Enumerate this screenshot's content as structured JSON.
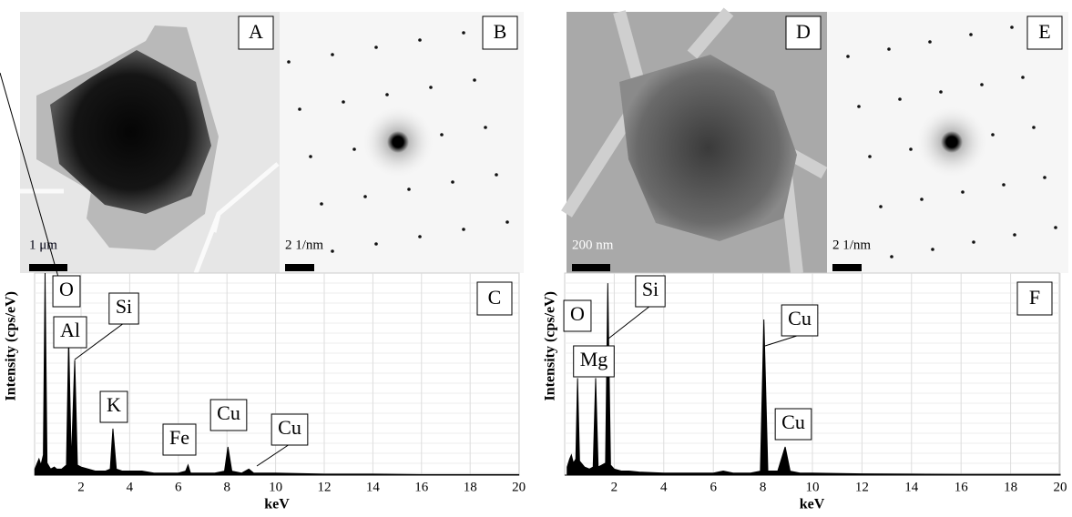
{
  "panels": [
    {
      "label": "A",
      "scale": "1 μm"
    },
    {
      "label": "B",
      "scale": "2 1/nm"
    },
    {
      "label": "D",
      "scale": "200 nm"
    },
    {
      "label": "E",
      "scale": "2 1/nm"
    }
  ],
  "chart_data": [
    {
      "type": "area",
      "title": "C",
      "x_label": "keV",
      "y_label": "Intensity (cps/eV)",
      "color": "#000000",
      "x": [
        0.1,
        0.2,
        0.27,
        0.35,
        0.45,
        0.52,
        0.6,
        0.75,
        0.9,
        1.0,
        1.2,
        1.4,
        1.49,
        1.6,
        1.74,
        1.85,
        2.0,
        2.3,
        2.6,
        3.0,
        3.2,
        3.31,
        3.45,
        3.7,
        4.0,
        4.5,
        5.0,
        5.5,
        6.0,
        6.3,
        6.4,
        6.5,
        6.8,
        7.0,
        7.5,
        7.9,
        8.04,
        8.2,
        8.6,
        8.9,
        9.1,
        9.5,
        10,
        12,
        14,
        16,
        18,
        20
      ],
      "values": [
        3,
        6,
        8,
        5,
        10,
        100,
        6,
        3,
        4,
        3,
        3,
        5,
        68,
        6,
        57,
        5,
        4,
        3,
        2,
        2,
        3,
        23,
        3,
        2,
        2,
        2,
        1,
        1,
        1,
        2,
        5,
        1,
        1,
        1,
        1,
        2,
        14,
        2,
        1,
        3,
        1,
        1,
        1,
        0.5,
        0.5,
        0.3,
        0.3,
        0.3
      ],
      "xlim": [
        0,
        20
      ],
      "ylim": [
        0,
        100
      ],
      "xticks": [
        2,
        4,
        6,
        8,
        10,
        12,
        14,
        16,
        18,
        20
      ],
      "grid": true,
      "annotations": [
        "O",
        "Al",
        "Si",
        "K",
        "Fe",
        "Cu",
        "Cu"
      ]
    },
    {
      "type": "area",
      "title": "F",
      "x_label": "keV",
      "y_label": "Intensity (cps/eV)",
      "color": "#000000",
      "x": [
        0.1,
        0.2,
        0.27,
        0.35,
        0.45,
        0.52,
        0.6,
        0.8,
        1.0,
        1.15,
        1.25,
        1.35,
        1.5,
        1.65,
        1.74,
        1.85,
        2.0,
        2.3,
        2.6,
        3.0,
        4.0,
        5.0,
        6.0,
        6.4,
        6.8,
        7.5,
        7.9,
        8.04,
        8.2,
        8.6,
        8.9,
        9.1,
        9.5,
        10,
        12,
        14,
        16,
        18,
        20
      ],
      "values": [
        4,
        8,
        10,
        6,
        8,
        48,
        7,
        4,
        3,
        4,
        48,
        4,
        5,
        6,
        95,
        5,
        3,
        2,
        2,
        1.5,
        1,
        1,
        1,
        2,
        1,
        1,
        2,
        77,
        2,
        2,
        14,
        2,
        1,
        1,
        0.6,
        0.5,
        0.4,
        0.4,
        0.4
      ],
      "xlim": [
        0,
        20
      ],
      "ylim": [
        0,
        100
      ],
      "xticks": [
        2,
        4,
        6,
        8,
        10,
        12,
        14,
        16,
        18,
        20
      ],
      "grid": true,
      "annotations": [
        "Si",
        "O",
        "Mg",
        "Cu",
        "Cu"
      ]
    }
  ]
}
